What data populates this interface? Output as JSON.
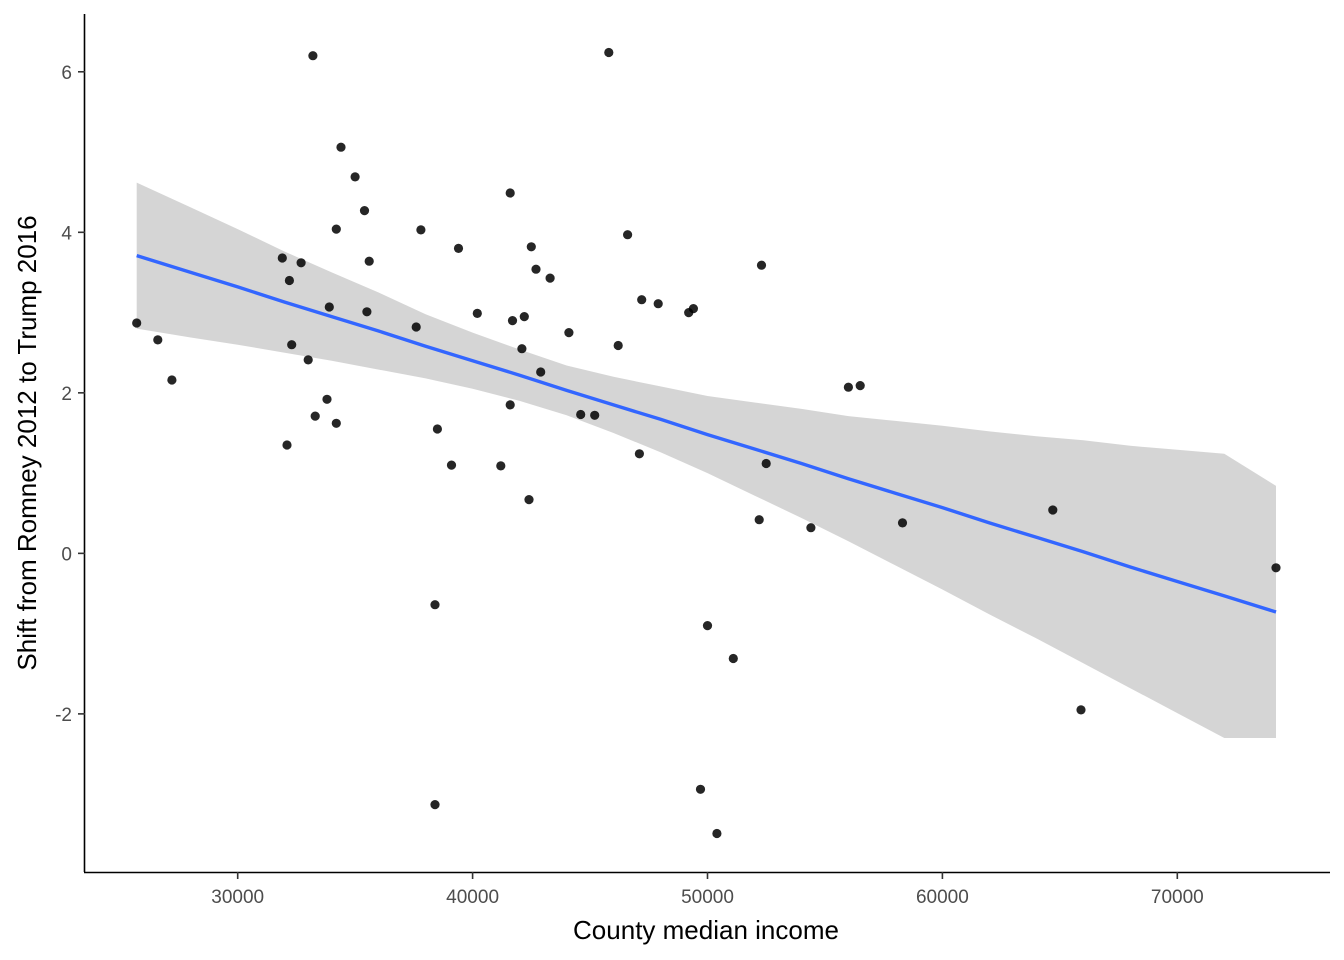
{
  "chart_data": {
    "type": "scatter",
    "title": "",
    "xlabel": "County median income",
    "ylabel": "Shift from Romney 2012 to Trump 2016",
    "xlim": [
      23500,
      76500
    ],
    "ylim": [
      -3.97,
      6.72
    ],
    "x_ticks": [
      30000,
      40000,
      50000,
      60000,
      70000
    ],
    "y_ticks": [
      -2,
      0,
      2,
      4,
      6
    ],
    "grid": false,
    "legend": "none",
    "point_color": "#000000",
    "smooth": {
      "method": "linear regression",
      "color": "#3366FF",
      "ribbon_color": "#D3D3D3",
      "x": [
        25700,
        28000,
        30000,
        32000,
        34000,
        36000,
        38000,
        40000,
        42000,
        44000,
        46000,
        48000,
        50000,
        52000,
        54000,
        56000,
        58000,
        60000,
        62000,
        64000,
        66000,
        68000,
        70000,
        72000,
        74200
      ],
      "fit": [
        3.71,
        3.5,
        3.32,
        3.13,
        2.95,
        2.77,
        2.58,
        2.4,
        2.22,
        2.03,
        1.85,
        1.67,
        1.48,
        1.3,
        1.12,
        0.93,
        0.75,
        0.57,
        0.38,
        0.2,
        0.02,
        -0.17,
        -0.35,
        -0.53,
        -0.73
      ],
      "lower": [
        2.8,
        2.69,
        2.6,
        2.5,
        2.4,
        2.29,
        2.18,
        2.05,
        1.9,
        1.72,
        1.5,
        1.26,
        1.0,
        0.72,
        0.44,
        0.15,
        -0.15,
        -0.45,
        -0.76,
        -1.06,
        -1.37,
        -1.68,
        -1.99,
        -2.3,
        -2.3
      ],
      "upper": [
        4.62,
        4.31,
        4.04,
        3.76,
        3.5,
        3.25,
        2.98,
        2.75,
        2.54,
        2.34,
        2.2,
        2.08,
        1.96,
        1.88,
        1.8,
        1.71,
        1.65,
        1.59,
        1.52,
        1.46,
        1.41,
        1.34,
        1.29,
        1.24,
        0.84
      ]
    },
    "points": [
      {
        "x": 25700,
        "y": 2.87
      },
      {
        "x": 26600,
        "y": 2.66
      },
      {
        "x": 27200,
        "y": 2.16
      },
      {
        "x": 31900,
        "y": 3.68
      },
      {
        "x": 32100,
        "y": 1.35
      },
      {
        "x": 32200,
        "y": 3.4
      },
      {
        "x": 32300,
        "y": 2.6
      },
      {
        "x": 32700,
        "y": 3.62
      },
      {
        "x": 33000,
        "y": 2.41
      },
      {
        "x": 33200,
        "y": 6.2
      },
      {
        "x": 33300,
        "y": 1.71
      },
      {
        "x": 33800,
        "y": 1.92
      },
      {
        "x": 33900,
        "y": 3.07
      },
      {
        "x": 34200,
        "y": 4.04
      },
      {
        "x": 34200,
        "y": 1.62
      },
      {
        "x": 34400,
        "y": 5.06
      },
      {
        "x": 35000,
        "y": 4.69
      },
      {
        "x": 35400,
        "y": 4.27
      },
      {
        "x": 35500,
        "y": 3.01
      },
      {
        "x": 35600,
        "y": 3.64
      },
      {
        "x": 37600,
        "y": 2.82
      },
      {
        "x": 37800,
        "y": 4.03
      },
      {
        "x": 38400,
        "y": -0.64
      },
      {
        "x": 38400,
        "y": -3.13
      },
      {
        "x": 38500,
        "y": 1.55
      },
      {
        "x": 39100,
        "y": 1.1
      },
      {
        "x": 39400,
        "y": 3.8
      },
      {
        "x": 40200,
        "y": 2.99
      },
      {
        "x": 41200,
        "y": 1.09
      },
      {
        "x": 41600,
        "y": 4.49
      },
      {
        "x": 41600,
        "y": 1.85
      },
      {
        "x": 41700,
        "y": 2.9
      },
      {
        "x": 42100,
        "y": 2.55
      },
      {
        "x": 42200,
        "y": 2.95
      },
      {
        "x": 42400,
        "y": 0.67
      },
      {
        "x": 42500,
        "y": 3.82
      },
      {
        "x": 42700,
        "y": 3.54
      },
      {
        "x": 42900,
        "y": 2.26
      },
      {
        "x": 43300,
        "y": 3.43
      },
      {
        "x": 44100,
        "y": 2.75
      },
      {
        "x": 44600,
        "y": 1.73
      },
      {
        "x": 45200,
        "y": 1.72
      },
      {
        "x": 45800,
        "y": 6.24
      },
      {
        "x": 46200,
        "y": 2.59
      },
      {
        "x": 46600,
        "y": 3.97
      },
      {
        "x": 47100,
        "y": 1.24
      },
      {
        "x": 47200,
        "y": 3.16
      },
      {
        "x": 47900,
        "y": 3.11
      },
      {
        "x": 49200,
        "y": 3.0
      },
      {
        "x": 49400,
        "y": 3.05
      },
      {
        "x": 49700,
        "y": -2.94
      },
      {
        "x": 50000,
        "y": -0.9
      },
      {
        "x": 50400,
        "y": -3.49
      },
      {
        "x": 51100,
        "y": -1.31
      },
      {
        "x": 52200,
        "y": 0.42
      },
      {
        "x": 52300,
        "y": 3.59
      },
      {
        "x": 52500,
        "y": 1.12
      },
      {
        "x": 54400,
        "y": 0.32
      },
      {
        "x": 56000,
        "y": 2.07
      },
      {
        "x": 56500,
        "y": 2.09
      },
      {
        "x": 58300,
        "y": 0.38
      },
      {
        "x": 64700,
        "y": 0.54
      },
      {
        "x": 65900,
        "y": -1.95
      },
      {
        "x": 74200,
        "y": -0.18
      }
    ]
  }
}
